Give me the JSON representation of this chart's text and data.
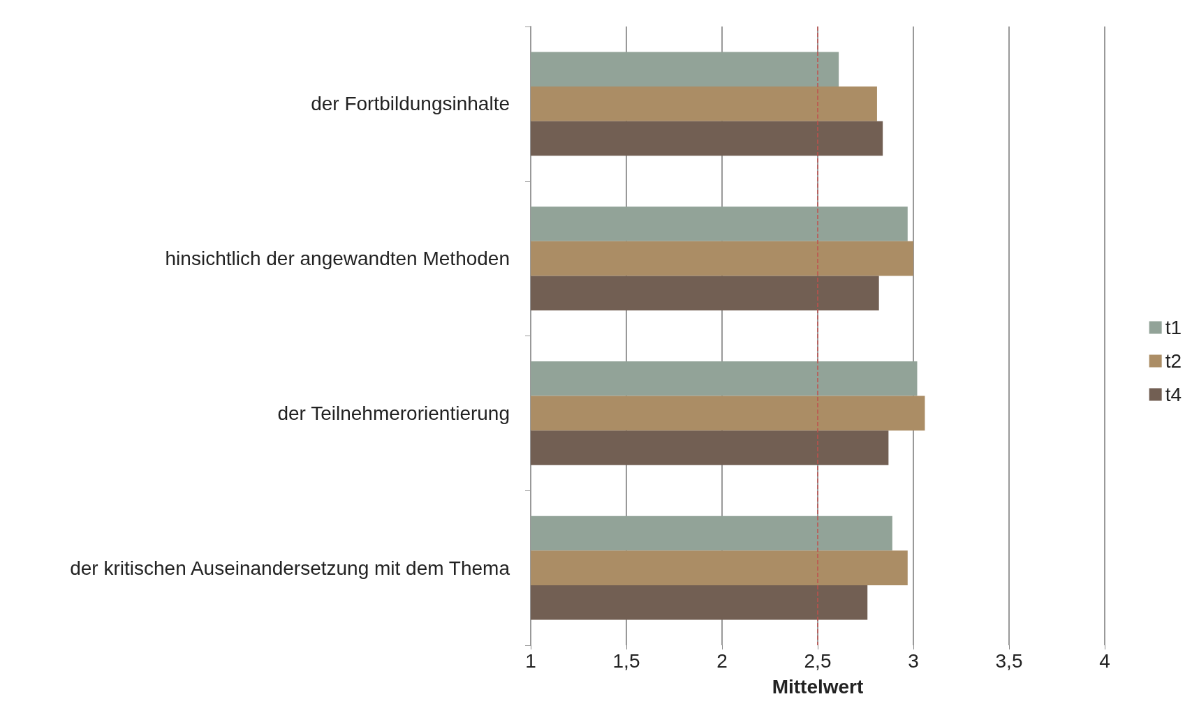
{
  "chart_data": {
    "type": "bar",
    "orientation": "horizontal",
    "xlabel": "Mittelwert",
    "categories": [
      "der Fortbildungsinhalte",
      "hinsichtlich der angewandten Methoden",
      "der Teilnehmerorientierung",
      "der kritischen Auseinandersetzung mit dem Thema"
    ],
    "series": [
      {
        "name": "t1",
        "color": "#92a398",
        "values": [
          2.61,
          2.97,
          3.02,
          2.89
        ]
      },
      {
        "name": "t2",
        "color": "#ab8d65",
        "values": [
          2.81,
          3.0,
          3.06,
          2.97
        ]
      },
      {
        "name": "t4",
        "color": "#725f53",
        "values": [
          2.84,
          2.82,
          2.87,
          2.76
        ]
      }
    ],
    "xlim": [
      1,
      4
    ],
    "xticks": [
      1,
      {
        "value": 1.5,
        "label": "1,5"
      },
      2,
      {
        "value": 2.5,
        "label": "2,5"
      },
      3,
      {
        "value": 3.5,
        "label": "3,5"
      },
      4
    ],
    "ref_lines": [
      {
        "axis": "x",
        "value": 2.5,
        "color": "#c0504d",
        "line_style": "dashed"
      }
    ],
    "grid": "x",
    "legend": "right"
  }
}
